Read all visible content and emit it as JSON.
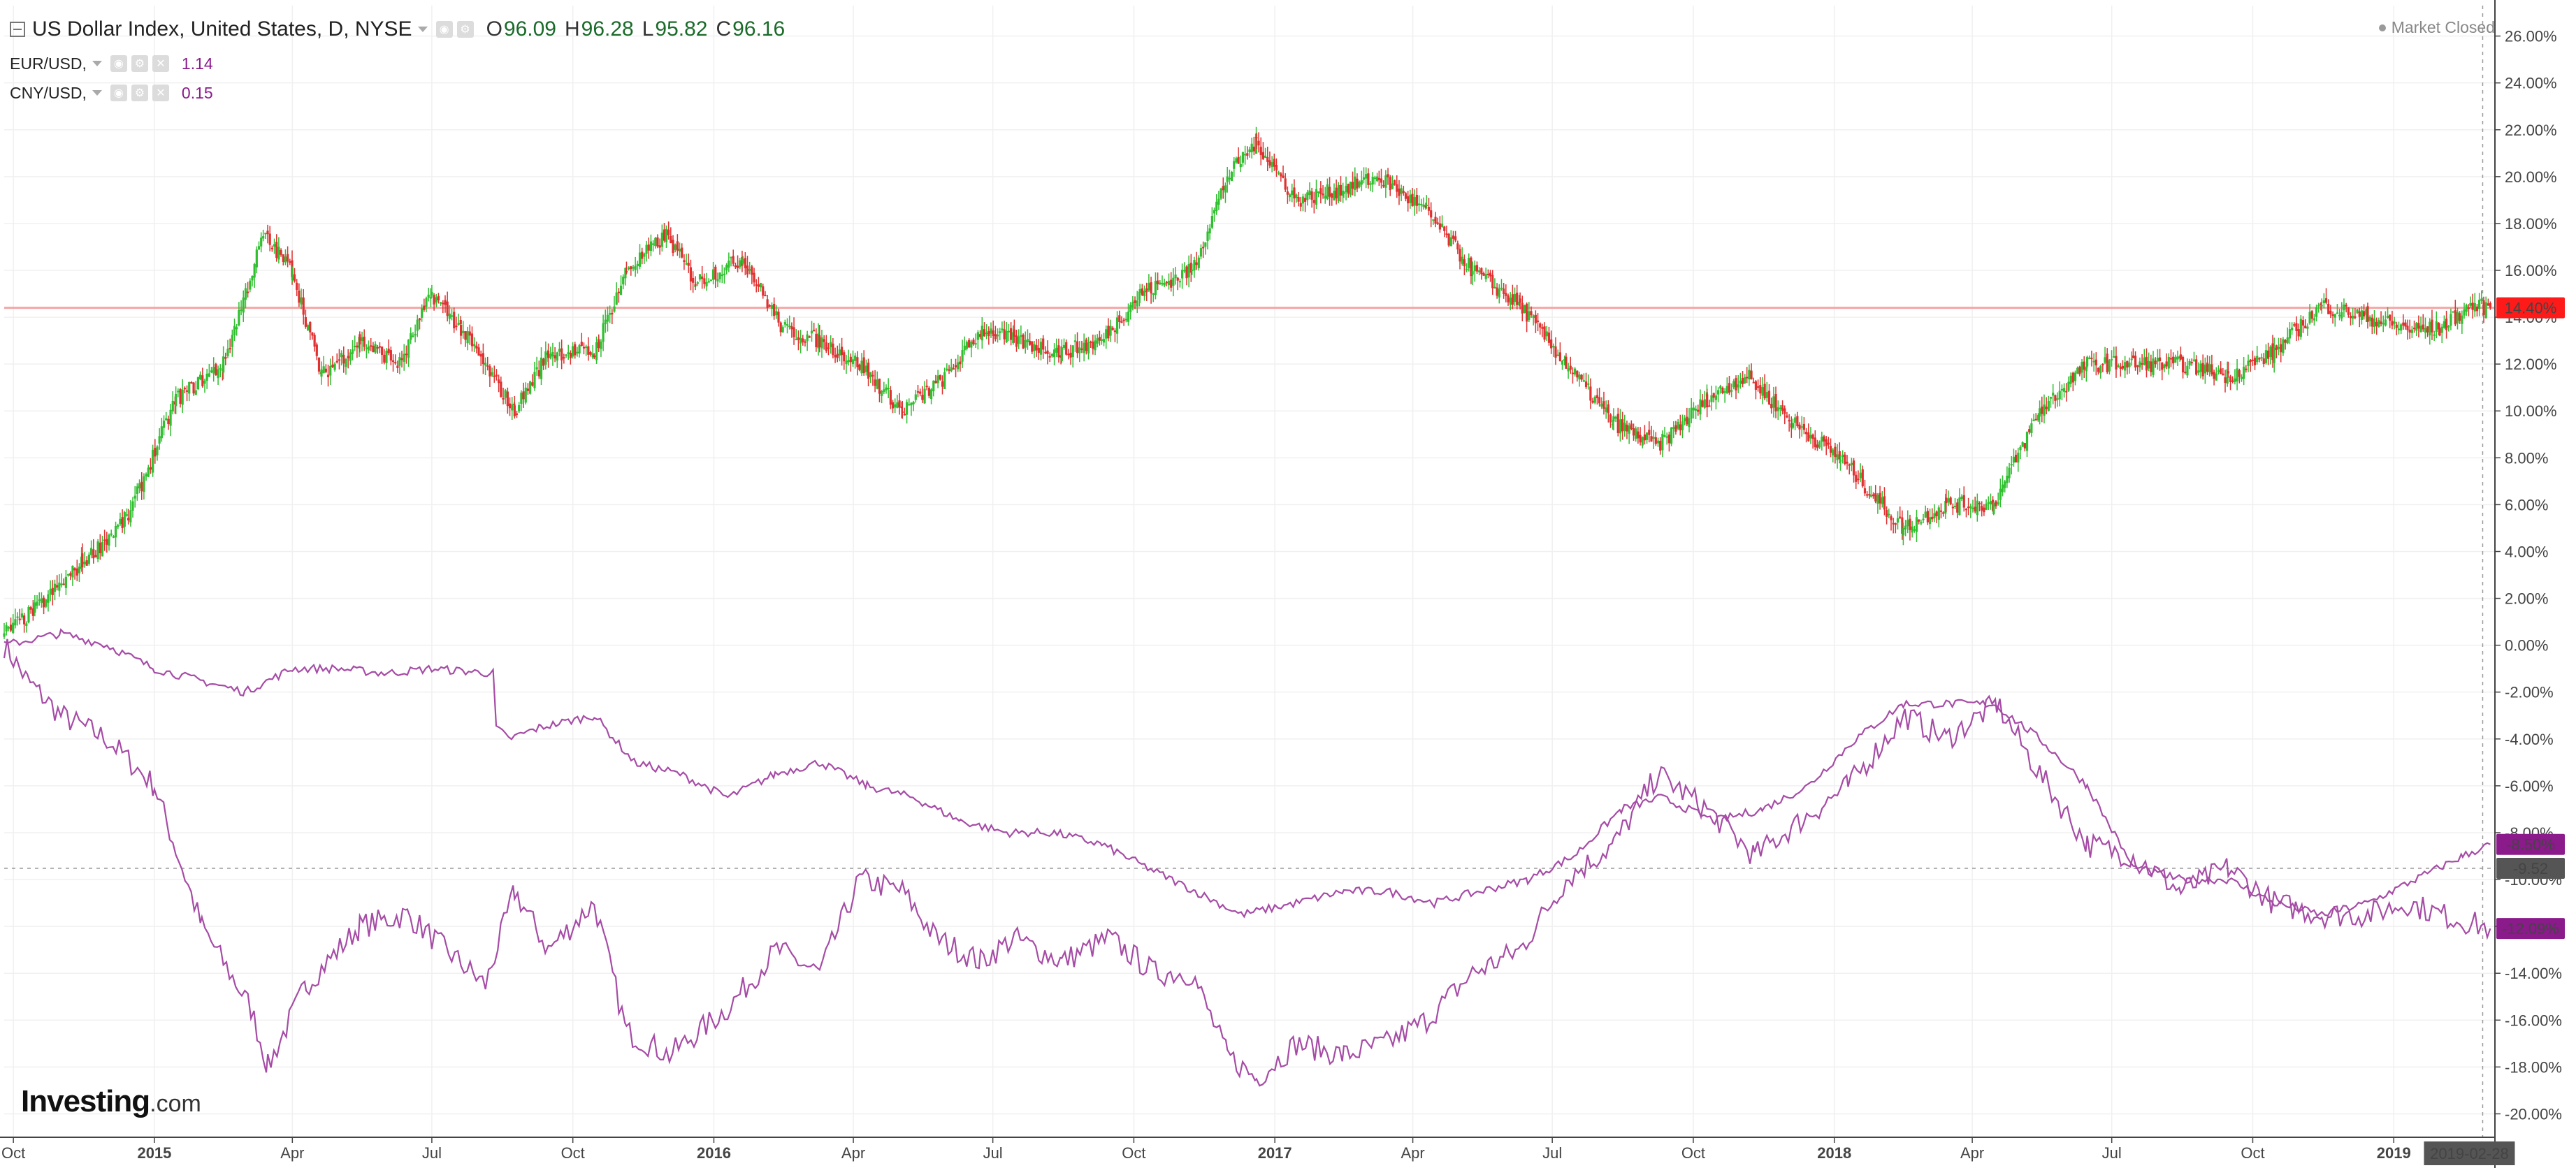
{
  "legend": {
    "main": {
      "title": "US Dollar Index, United States, D, NYSE",
      "open_key": "O",
      "open": "96.09",
      "high_key": "H",
      "high": "96.28",
      "low_key": "L",
      "low": "95.82",
      "close_key": "C",
      "close": "96.16"
    },
    "indicators": [
      {
        "name": "EUR/USD,",
        "value": "1.14"
      },
      {
        "name": "CNY/USD,",
        "value": "0.15"
      }
    ]
  },
  "status": {
    "market": "Market Closed"
  },
  "logo": {
    "brand": "Investing",
    "suffix": ".com"
  },
  "colors": {
    "up": "#2fbf2f",
    "down": "#e03030",
    "compare_line": "#a64ca6",
    "reference_line": "#f4a6a6",
    "badge_red": "#ff1a1a",
    "badge_purple": "#8b1a8b",
    "badge_gray": "#555555",
    "grid": "#f0f0f0",
    "axis": "#444444"
  },
  "badges": [
    {
      "text": "14.40%",
      "value": 14.4,
      "color": "#ff1a1a"
    },
    {
      "text": "-8.50%",
      "value": -8.5,
      "color": "#8b1a8b"
    },
    {
      "text": "-9.52",
      "value": -9.52,
      "color": "#555555"
    },
    {
      "text": "-12.09%",
      "value": -12.09,
      "color": "#8b1a8b"
    }
  ],
  "chart_data": {
    "type": "line",
    "title": "US Dollar Index, United States, D, NYSE",
    "y_unit": "%",
    "ylim": [
      -21,
      27.3
    ],
    "y_ticks": [
      "26.00%",
      "24.00%",
      "22.00%",
      "20.00%",
      "18.00%",
      "16.00%",
      "14.00%",
      "12.00%",
      "10.00%",
      "8.00%",
      "6.00%",
      "4.00%",
      "2.00%",
      "0.00%",
      "-2.00%",
      "-4.00%",
      "-6.00%",
      "-8.00%",
      "-10.00%",
      "-12.00%",
      "-14.00%",
      "-16.00%",
      "-18.00%",
      "-20.00%"
    ],
    "y_tick_values": [
      26,
      24,
      22,
      20,
      18,
      16,
      14,
      12,
      10,
      8,
      6,
      4,
      2,
      0,
      -2,
      -4,
      -6,
      -8,
      -10,
      -12,
      -14,
      -16,
      -18,
      -20
    ],
    "x_range": [
      "2014-09-25",
      "2019-03-08"
    ],
    "x_ticks": [
      {
        "label": "Oct",
        "date": "2014-10-01",
        "bold": false
      },
      {
        "label": "2015",
        "date": "2015-01-01",
        "bold": true
      },
      {
        "label": "Apr",
        "date": "2015-04-01",
        "bold": false
      },
      {
        "label": "Jul",
        "date": "2015-07-01",
        "bold": false
      },
      {
        "label": "Oct",
        "date": "2015-10-01",
        "bold": false
      },
      {
        "label": "2016",
        "date": "2016-01-01",
        "bold": true
      },
      {
        "label": "Apr",
        "date": "2016-04-01",
        "bold": false
      },
      {
        "label": "Jul",
        "date": "2016-07-01",
        "bold": false
      },
      {
        "label": "Oct",
        "date": "2016-10-01",
        "bold": false
      },
      {
        "label": "2017",
        "date": "2017-01-01",
        "bold": true
      },
      {
        "label": "Apr",
        "date": "2017-04-01",
        "bold": false
      },
      {
        "label": "Jul",
        "date": "2017-07-01",
        "bold": false
      },
      {
        "label": "Oct",
        "date": "2017-10-01",
        "bold": false
      },
      {
        "label": "2018",
        "date": "2018-01-01",
        "bold": true
      },
      {
        "label": "Apr",
        "date": "2018-04-01",
        "bold": false
      },
      {
        "label": "Jul",
        "date": "2018-07-01",
        "bold": false
      },
      {
        "label": "Oct",
        "date": "2018-10-01",
        "bold": false
      },
      {
        "label": "2019",
        "date": "2019-01-01",
        "bold": true
      }
    ],
    "cursor_date": "2019-02-28",
    "reference_level": 14.4,
    "series": [
      {
        "name": "US Dollar Index",
        "style": "candlestick",
        "x": [
          "2014-09-25",
          "2014-10-15",
          "2014-11-15",
          "2014-12-15",
          "2015-01-15",
          "2015-02-15",
          "2015-03-13",
          "2015-04-01",
          "2015-04-20",
          "2015-05-15",
          "2015-06-10",
          "2015-07-01",
          "2015-07-20",
          "2015-08-24",
          "2015-09-15",
          "2015-10-15",
          "2015-11-05",
          "2015-12-01",
          "2015-12-20",
          "2016-01-20",
          "2016-02-15",
          "2016-03-10",
          "2016-04-05",
          "2016-05-03",
          "2016-06-01",
          "2016-06-24",
          "2016-07-15",
          "2016-08-15",
          "2016-09-10",
          "2016-10-05",
          "2016-11-08",
          "2016-12-01",
          "2016-12-20",
          "2017-01-15",
          "2017-02-15",
          "2017-03-10",
          "2017-04-10",
          "2017-05-10",
          "2017-06-10",
          "2017-07-10",
          "2017-08-10",
          "2017-09-08",
          "2017-10-10",
          "2017-11-05",
          "2017-12-05",
          "2018-01-05",
          "2018-01-25",
          "2018-02-15",
          "2018-03-15",
          "2018-04-15",
          "2018-05-15",
          "2018-06-15",
          "2018-07-15",
          "2018-08-15",
          "2018-09-15",
          "2018-10-15",
          "2018-11-15",
          "2018-12-15",
          "2019-01-10",
          "2019-01-31",
          "2019-02-20",
          "2019-03-05"
        ],
        "values": [
          0.5,
          1.5,
          3.5,
          5.5,
          10.5,
          12.0,
          17.5,
          16.0,
          11.5,
          13.0,
          12.0,
          15.0,
          13.5,
          10.0,
          12.5,
          12.5,
          16.0,
          17.5,
          15.5,
          16.5,
          13.5,
          13.0,
          12.0,
          10.0,
          11.5,
          13.5,
          13.0,
          12.5,
          13.0,
          15.0,
          16.0,
          20.0,
          21.5,
          19.0,
          19.5,
          20.0,
          18.5,
          16.0,
          14.5,
          12.0,
          9.5,
          8.5,
          10.5,
          11.5,
          9.5,
          8.0,
          6.5,
          5.0,
          6.0,
          6.0,
          10.0,
          12.0,
          12.0,
          12.0,
          11.5,
          12.5,
          14.5,
          14.0,
          13.5,
          13.5,
          14.5,
          14.4
        ]
      },
      {
        "name": "EUR/USD",
        "style": "line",
        "x": [
          "2014-09-25",
          "2014-10-10",
          "2014-11-01",
          "2014-12-01",
          "2015-01-01",
          "2015-02-01",
          "2015-03-05",
          "2015-03-16",
          "2015-04-10",
          "2015-05-15",
          "2015-06-15",
          "2015-07-10",
          "2015-08-05",
          "2015-08-24",
          "2015-09-15",
          "2015-10-15",
          "2015-11-05",
          "2015-12-03",
          "2016-01-10",
          "2016-02-11",
          "2016-03-10",
          "2016-04-05",
          "2016-05-03",
          "2016-05-25",
          "2016-06-23",
          "2016-07-15",
          "2016-08-15",
          "2016-09-15",
          "2016-10-15",
          "2016-11-08",
          "2016-12-01",
          "2016-12-20",
          "2017-01-15",
          "2017-02-15",
          "2017-03-15",
          "2017-04-10",
          "2017-05-10",
          "2017-06-10",
          "2017-07-10",
          "2017-08-10",
          "2017-09-08",
          "2017-10-10",
          "2017-11-10",
          "2017-12-10",
          "2018-01-10",
          "2018-02-16",
          "2018-03-15",
          "2018-04-17",
          "2018-05-15",
          "2018-06-15",
          "2018-07-15",
          "2018-08-15",
          "2018-09-15",
          "2018-10-15",
          "2018-11-15",
          "2018-12-15",
          "2019-01-10",
          "2019-02-01",
          "2019-03-05"
        ],
        "values": [
          0.0,
          -1.5,
          -3.0,
          -4.0,
          -6.0,
          -12.0,
          -15.5,
          -18.0,
          -14.5,
          -12.0,
          -11.5,
          -13.0,
          -14.5,
          -10.5,
          -13.0,
          -11.0,
          -16.5,
          -17.5,
          -15.5,
          -13.0,
          -14.0,
          -10.0,
          -10.5,
          -12.5,
          -13.5,
          -12.5,
          -13.5,
          -12.5,
          -14.0,
          -14.0,
          -17.5,
          -18.5,
          -17.0,
          -17.5,
          -17.0,
          -16.0,
          -14.0,
          -13.0,
          -10.0,
          -8.5,
          -5.5,
          -7.0,
          -9.0,
          -7.5,
          -6.0,
          -3.0,
          -4.0,
          -2.5,
          -5.5,
          -8.5,
          -9.0,
          -10.5,
          -9.5,
          -11.0,
          -11.5,
          -11.5,
          -11.0,
          -11.5,
          -12.09
        ]
      },
      {
        "name": "CNY/USD",
        "style": "line",
        "x": [
          "2014-09-25",
          "2014-11-01",
          "2014-12-01",
          "2015-01-01",
          "2015-03-01",
          "2015-04-01",
          "2015-05-01",
          "2015-06-01",
          "2015-07-01",
          "2015-08-10",
          "2015-08-12",
          "2015-08-20",
          "2015-09-10",
          "2015-10-15",
          "2015-11-10",
          "2015-12-10",
          "2016-01-10",
          "2016-02-10",
          "2016-03-10",
          "2016-04-10",
          "2016-05-10",
          "2016-06-10",
          "2016-07-10",
          "2016-08-10",
          "2016-09-10",
          "2016-10-10",
          "2016-11-10",
          "2016-12-10",
          "2017-01-15",
          "2017-02-15",
          "2017-03-15",
          "2017-04-15",
          "2017-05-15",
          "2017-06-15",
          "2017-07-15",
          "2017-08-15",
          "2017-09-10",
          "2017-10-15",
          "2017-11-15",
          "2017-12-15",
          "2018-01-15",
          "2018-02-15",
          "2018-03-15",
          "2018-04-15",
          "2018-05-15",
          "2018-06-15",
          "2018-07-15",
          "2018-08-15",
          "2018-09-15",
          "2018-10-15",
          "2018-11-15",
          "2018-12-15",
          "2019-01-15",
          "2019-02-15",
          "2019-03-05"
        ],
        "values": [
          0.0,
          0.5,
          0.0,
          -1.0,
          -2.0,
          -1.0,
          -1.0,
          -1.2,
          -1.0,
          -1.2,
          -3.5,
          -4.0,
          -3.5,
          -3.0,
          -5.0,
          -5.5,
          -6.5,
          -5.5,
          -5.0,
          -6.0,
          -6.5,
          -7.5,
          -8.0,
          -8.0,
          -8.5,
          -9.5,
          -10.5,
          -11.5,
          -11.0,
          -10.5,
          -10.5,
          -11.0,
          -10.5,
          -10.0,
          -9.0,
          -7.0,
          -6.5,
          -7.5,
          -7.0,
          -6.0,
          -4.0,
          -2.5,
          -2.5,
          -2.5,
          -4.0,
          -6.0,
          -9.5,
          -10.0,
          -10.0,
          -11.0,
          -11.5,
          -11.0,
          -10.0,
          -9.0,
          -8.5
        ]
      }
    ]
  }
}
